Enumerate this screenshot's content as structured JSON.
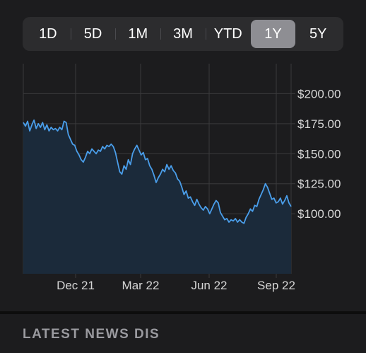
{
  "range_selector": {
    "options": [
      "1D",
      "5D",
      "1M",
      "3M",
      "YTD",
      "1Y",
      "5Y"
    ],
    "selected": "1Y"
  },
  "chart_data": {
    "type": "area",
    "x_ticks": [
      "Dec 21",
      "Mar 22",
      "Jun 22",
      "Sep 22"
    ],
    "y_ticks": [
      100,
      125,
      150,
      175,
      200
    ],
    "y_tick_labels": [
      "$100.00",
      "$125.00",
      "$150.00",
      "$175.00",
      "$200.00"
    ],
    "ylim": [
      50,
      225
    ],
    "grid": true,
    "line_color": "#4a9eea",
    "fill_color": "#1b2a3a",
    "series": [
      {
        "values": [
          176,
          173,
          177,
          169,
          174,
          178,
          171,
          175,
          172,
          176,
          170,
          174,
          169,
          172,
          170,
          171,
          169,
          172,
          170,
          177,
          176,
          166,
          162,
          158,
          157,
          152,
          149,
          145,
          143,
          147,
          152,
          150,
          154,
          152,
          150,
          153,
          152,
          156,
          154,
          157,
          156,
          158,
          156,
          151,
          143,
          135,
          133,
          140,
          137,
          145,
          141,
          150,
          154,
          157,
          153,
          149,
          151,
          145,
          146,
          140,
          137,
          132,
          126,
          130,
          133,
          137,
          135,
          141,
          137,
          140,
          136,
          134,
          129,
          127,
          122,
          116,
          119,
          113,
          114,
          110,
          107,
          112,
          108,
          105,
          103,
          106,
          104,
          100,
          104,
          108,
          111,
          109,
          101,
          98,
          95,
          96,
          93,
          95,
          94,
          96,
          93,
          95,
          93,
          92,
          97,
          100,
          104,
          102,
          107,
          106,
          112,
          116,
          120,
          125,
          122,
          117,
          112,
          113,
          109,
          110,
          113,
          108,
          111,
          115,
          109,
          106
        ]
      }
    ]
  },
  "news": {
    "title": "LATEST NEWS DIS"
  }
}
